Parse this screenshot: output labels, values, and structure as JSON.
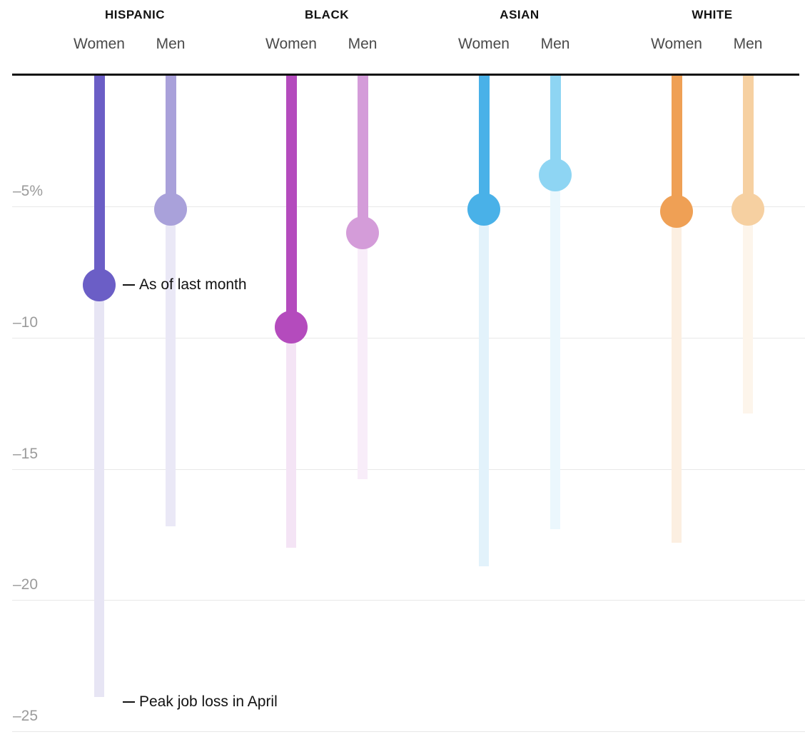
{
  "chart_data": {
    "type": "bar",
    "subtype": "lollipop",
    "description": "Job loss in percent by race and gender: peak job loss in April (faded bar) vs as of last month (solid bar with dot)",
    "unit": "percent",
    "grid": true,
    "y_axis": {
      "max": 0,
      "min": -25.5,
      "ticks": [
        {
          "label": "–5%",
          "value": -5
        },
        {
          "label": "–10",
          "value": -10
        },
        {
          "label": "–15",
          "value": -15
        },
        {
          "label": "–20",
          "value": -20
        },
        {
          "label": "–25",
          "value": -25
        }
      ]
    },
    "series_legend": [
      {
        "name": "As of last month",
        "style": "solid-bar-with-dot"
      },
      {
        "name": "Peak job loss in April",
        "style": "faded-bar"
      }
    ],
    "groups": [
      {
        "label": "HISPANIC",
        "columns": [
          {
            "label": "Women",
            "color": "#6b5ec6",
            "faded_color": "#e7e5f4",
            "as_of_last_month": -8.0,
            "peak_job_loss_april": -23.7
          },
          {
            "label": "Men",
            "color": "#a9a1da",
            "faded_color": "#eae8f6",
            "as_of_last_month": -5.1,
            "peak_job_loss_april": -17.2
          }
        ]
      },
      {
        "label": "BLACK",
        "columns": [
          {
            "label": "Women",
            "color": "#b44bbd",
            "faded_color": "#f4e4f5",
            "as_of_last_month": -9.6,
            "peak_job_loss_april": -18.0
          },
          {
            "label": "Men",
            "color": "#d49cd9",
            "faded_color": "#f8edf9",
            "as_of_last_month": -6.0,
            "peak_job_loss_april": -15.4
          }
        ]
      },
      {
        "label": "ASIAN",
        "columns": [
          {
            "label": "Women",
            "color": "#49b1e8",
            "faded_color": "#e2f2fb",
            "as_of_last_month": -5.1,
            "peak_job_loss_april": -18.7
          },
          {
            "label": "Men",
            "color": "#8ed5f3",
            "faded_color": "#ebf7fd",
            "as_of_last_month": -3.8,
            "peak_job_loss_april": -17.3
          }
        ]
      },
      {
        "label": "WHITE",
        "columns": [
          {
            "label": "Women",
            "color": "#efa055",
            "faded_color": "#fcefe1",
            "as_of_last_month": -5.2,
            "peak_job_loss_april": -17.8
          },
          {
            "label": "Men",
            "color": "#f6d0a1",
            "faded_color": "#fdf5eb",
            "as_of_last_month": -5.1,
            "peak_job_loss_april": -12.9
          }
        ]
      }
    ],
    "annotations": [
      {
        "text": "As of last month",
        "anchor": "dot",
        "target": "hispanic-women"
      },
      {
        "text": "Peak job loss in April",
        "anchor": "bar-end",
        "target": "hispanic-women"
      }
    ],
    "colors": {
      "axis_line": "#121212",
      "gridline": "#e8e8e8",
      "tick_label": "#9b9b9b",
      "annotation_text": "#121212",
      "group_header": "#121212",
      "column_label": "#4a4a4a"
    }
  }
}
